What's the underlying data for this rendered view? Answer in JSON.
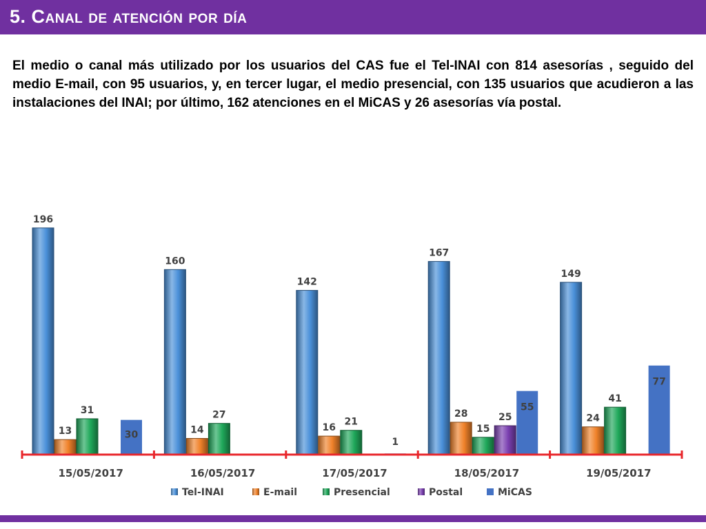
{
  "header": {
    "title": "5. Canal de atención por día"
  },
  "intro": {
    "text": "El medio o canal más utilizado por los usuarios del CAS fue el Tel-INAI con 814 asesorías , seguido del medio E-mail, con 95 usuarios, y, en tercer lugar, el medio presencial, con 135 usuarios que acudieron a las instalaciones del INAI; por último, 162 atenciones en el MiCAS y 26 asesorías vía postal."
  },
  "colors": {
    "accent": "#7030a0",
    "axis": "#e8262b"
  },
  "chart_data": {
    "type": "bar",
    "categories": [
      "15/05/2017",
      "16/05/2017",
      "17/05/2017",
      "18/05/2017",
      "19/05/2017"
    ],
    "series": [
      {
        "name": "Tel-INAI",
        "color": "#4a90d9",
        "values": [
          196,
          160,
          142,
          167,
          149
        ]
      },
      {
        "name": "E-mail",
        "color": "#f0822a",
        "values": [
          13,
          14,
          16,
          28,
          24
        ]
      },
      {
        "name": "Presencial",
        "color": "#1fa85a",
        "values": [
          31,
          27,
          21,
          15,
          41
        ]
      },
      {
        "name": "Postal",
        "color": "#7a3fb0",
        "values": [
          null,
          null,
          null,
          25,
          null
        ]
      },
      {
        "name": "MiCAS",
        "color": "#4472c4",
        "values": [
          30,
          null,
          1,
          55,
          77
        ]
      }
    ],
    "ylim": [
      0,
      200
    ],
    "grid": false,
    "legend": "bottom"
  }
}
